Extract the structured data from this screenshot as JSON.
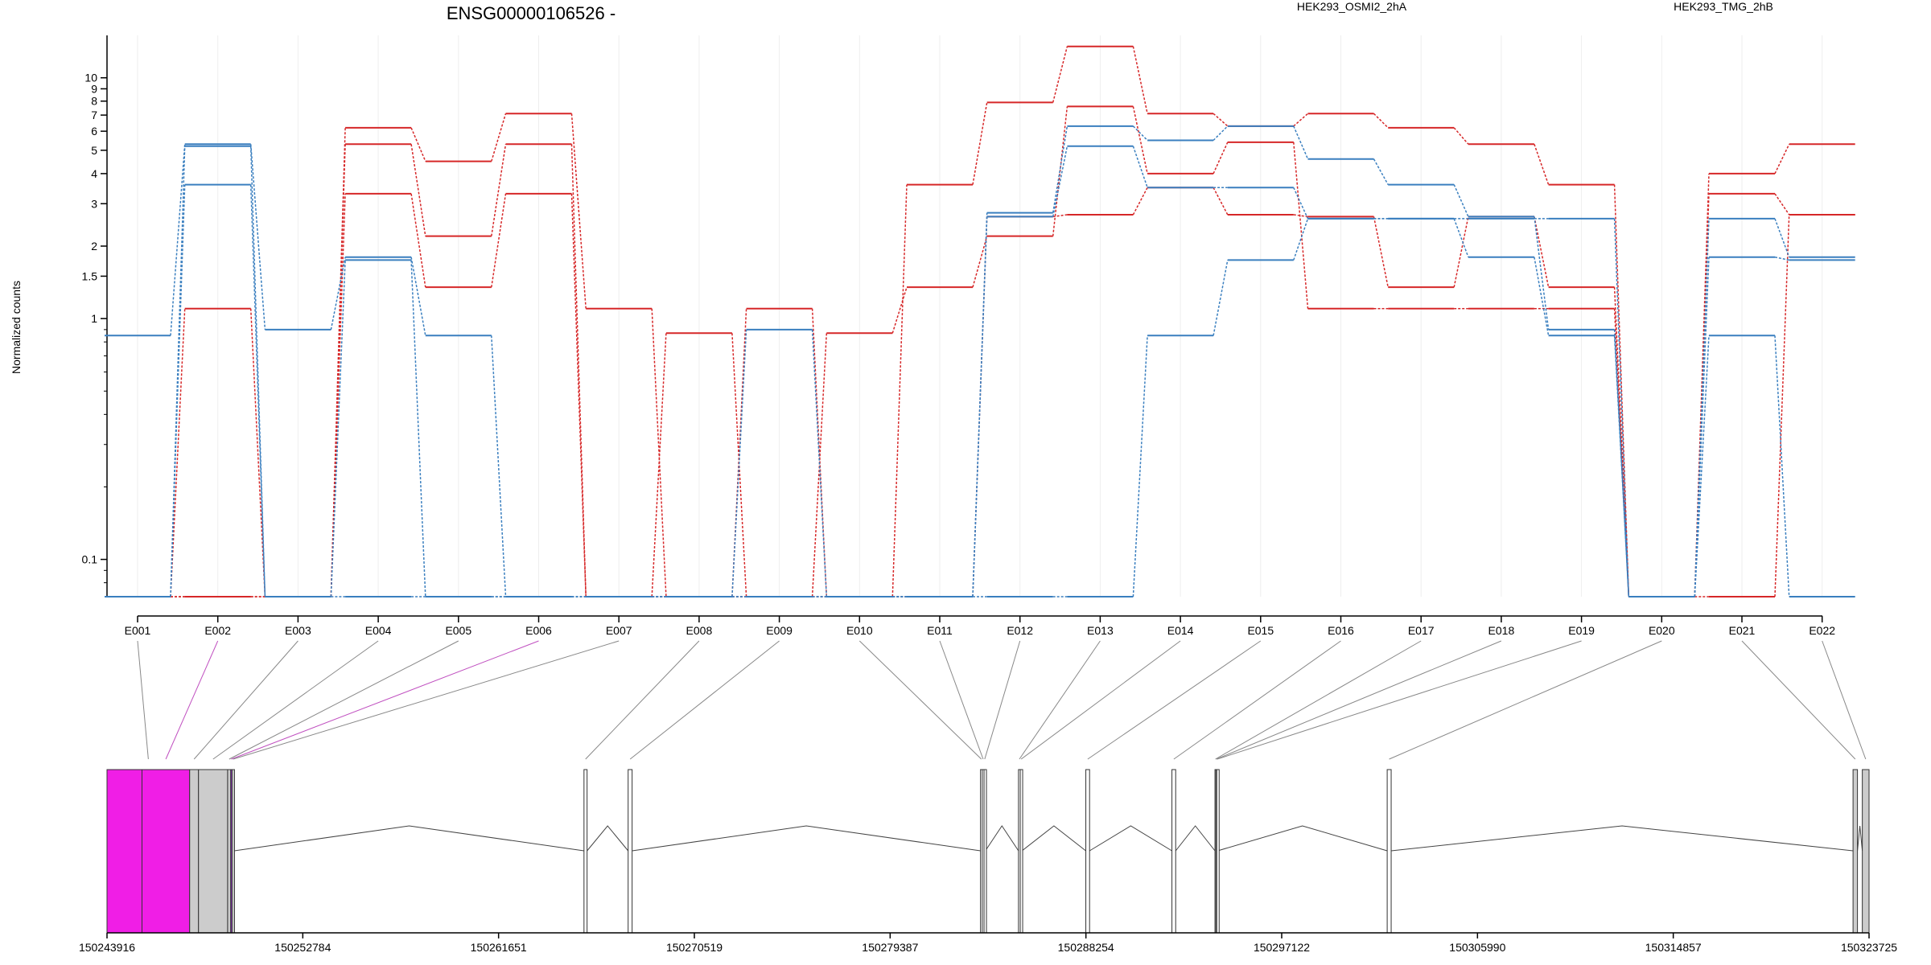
{
  "gene_title": "ENSG00000106526 -",
  "ylabel": "Normalized counts",
  "chart_data": {
    "type": "line",
    "scale_y": "log",
    "ylim": [
      0.07,
      15
    ],
    "y_ticks": [
      0.1,
      1,
      1.5,
      2,
      3,
      4,
      5,
      6,
      7,
      8,
      9,
      10
    ],
    "y_tick_labels": [
      "0.1",
      "1",
      "1.5",
      "2",
      "3",
      "4",
      "5",
      "6",
      "7",
      "8",
      "9",
      "10"
    ],
    "categories": [
      "E001",
      "E002",
      "E003",
      "E004",
      "E005",
      "E006",
      "E007",
      "E008",
      "E009",
      "E010",
      "E011",
      "E012",
      "E013",
      "E014",
      "E015",
      "E016",
      "E017",
      "E018",
      "E019",
      "E020",
      "E021",
      "E022"
    ],
    "groups": [
      {
        "name": "HEK293_OSMI2_2hA",
        "color": "#d62728"
      },
      {
        "name": "HEK293_TMG_2hB",
        "color": "#3a7fbf"
      }
    ],
    "series": [
      {
        "group": 0,
        "values": [
          0.07,
          0.07,
          0.07,
          6.2,
          4.5,
          7.1,
          1.1,
          0.07,
          1.1,
          0.07,
          3.6,
          7.9,
          13.5,
          7.1,
          6.3,
          7.1,
          6.2,
          5.3,
          3.6,
          0.07,
          4.0,
          5.3
        ]
      },
      {
        "group": 0,
        "values": [
          0.07,
          1.1,
          0.07,
          5.3,
          2.2,
          5.3,
          0.07,
          0.87,
          0.07,
          0.87,
          1.35,
          2.2,
          7.6,
          4.0,
          5.4,
          1.1,
          1.1,
          1.1,
          1.1,
          0.07,
          3.3,
          2.7
        ]
      },
      {
        "group": 0,
        "values": [
          0.07,
          0.07,
          0.07,
          3.3,
          1.35,
          3.3,
          0.07,
          0.07,
          0.07,
          0.07,
          0.07,
          2.65,
          2.7,
          3.5,
          2.7,
          2.65,
          1.35,
          2.65,
          1.35,
          0.07,
          0.07,
          2.7
        ]
      },
      {
        "group": 1,
        "values": [
          0.85,
          5.3,
          0.9,
          1.8,
          0.85,
          0.07,
          0.07,
          0.07,
          0.9,
          0.07,
          0.07,
          2.75,
          6.3,
          5.5,
          6.3,
          4.6,
          3.6,
          2.65,
          0.9,
          0.07,
          2.6,
          1.8
        ]
      },
      {
        "group": 1,
        "values": [
          0.07,
          5.2,
          0.07,
          1.75,
          0.07,
          0.07,
          0.07,
          0.07,
          0.07,
          0.07,
          0.07,
          2.65,
          5.2,
          3.5,
          3.5,
          2.6,
          2.6,
          2.6,
          2.6,
          0.07,
          1.8,
          1.75
        ]
      },
      {
        "group": 1,
        "values": [
          0.07,
          3.6,
          0.07,
          0.07,
          0.07,
          0.07,
          0.07,
          0.07,
          0.07,
          0.07,
          0.07,
          0.07,
          0.07,
          0.85,
          1.75,
          2.6,
          2.6,
          1.8,
          0.85,
          0.07,
          0.85,
          0.07
        ]
      }
    ]
  },
  "gene_model": {
    "coord_start": 150243916,
    "coord_end": 150323725,
    "coord_ticks": [
      "150243916",
      "150252784",
      "150261651",
      "150270519",
      "150279387",
      "150288254",
      "150297122",
      "150305990",
      "150314857",
      "150323725"
    ],
    "exons": [
      {
        "id": "E001",
        "start": 150243916,
        "end": 150247660,
        "color": "#f01ee6",
        "link": "#888888"
      },
      {
        "id": "E002",
        "start": 150245500,
        "end": 150247660,
        "color": "#f01ee6",
        "link": "#c050c0"
      },
      {
        "id": "E003",
        "start": 150247660,
        "end": 150248060,
        "color": "#cccccc",
        "link": "#888888"
      },
      {
        "id": "E004",
        "start": 150248060,
        "end": 150249380,
        "color": "#cccccc",
        "link": "#888888"
      },
      {
        "id": "E005",
        "start": 150249380,
        "end": 150249520,
        "color": "#cccccc",
        "link": "#888888"
      },
      {
        "id": "E006",
        "start": 150249520,
        "end": 150249580,
        "color": "#9933cc",
        "link": "#c050c0"
      },
      {
        "id": "E007",
        "start": 150249580,
        "end": 150249680,
        "color": "#cccccc",
        "link": "#888888"
      },
      {
        "id": "E008",
        "start": 150265520,
        "end": 150265660,
        "color": "#ffffff",
        "link": "#888888"
      },
      {
        "id": "E009",
        "start": 150267520,
        "end": 150267700,
        "color": "#ffffff",
        "link": "#888888"
      },
      {
        "id": "E010",
        "start": 150283480,
        "end": 150283560,
        "color": "#ffffff",
        "link": "#888888"
      },
      {
        "id": "E011",
        "start": 150283560,
        "end": 150283640,
        "color": "#ffffff",
        "link": "#888888"
      },
      {
        "id": "E012",
        "start": 150283640,
        "end": 150283700,
        "color": "#ffffff",
        "link": "#888888"
      },
      {
        "id": "E013",
        "start": 150285200,
        "end": 150285280,
        "color": "#ffffff",
        "link": "#888888"
      },
      {
        "id": "E014",
        "start": 150285280,
        "end": 150285360,
        "color": "#ffffff",
        "link": "#888888"
      },
      {
        "id": "E015",
        "start": 150288250,
        "end": 150288420,
        "color": "#ffffff",
        "link": "#888888"
      },
      {
        "id": "E016",
        "start": 150292150,
        "end": 150292320,
        "color": "#ffffff",
        "link": "#888888"
      },
      {
        "id": "E017",
        "start": 150294100,
        "end": 150294140,
        "color": "#ffffff",
        "link": "#888888"
      },
      {
        "id": "E018",
        "start": 150294140,
        "end": 150294180,
        "color": "#ffffff",
        "link": "#888888"
      },
      {
        "id": "E019",
        "start": 150294180,
        "end": 150294220,
        "color": "#ffffff",
        "link": "#888888"
      },
      {
        "id": "E020",
        "start": 150301900,
        "end": 150302080,
        "color": "#ffffff",
        "link": "#888888"
      },
      {
        "id": "E021",
        "start": 150323000,
        "end": 150323200,
        "color": "#cccccc",
        "link": "#888888"
      },
      {
        "id": "E022",
        "start": 150323420,
        "end": 150323725,
        "color": "#cccccc",
        "link": "#888888"
      }
    ],
    "introns": [
      [
        150249680,
        150265520
      ],
      [
        150265660,
        150267520
      ],
      [
        150267700,
        150283480
      ],
      [
        150283700,
        150285200
      ],
      [
        150285360,
        150288250
      ],
      [
        150288420,
        150292150
      ],
      [
        150292320,
        150294100
      ],
      [
        150294220,
        150301900
      ],
      [
        150302080,
        150323000
      ],
      [
        150323200,
        150323420
      ]
    ]
  }
}
